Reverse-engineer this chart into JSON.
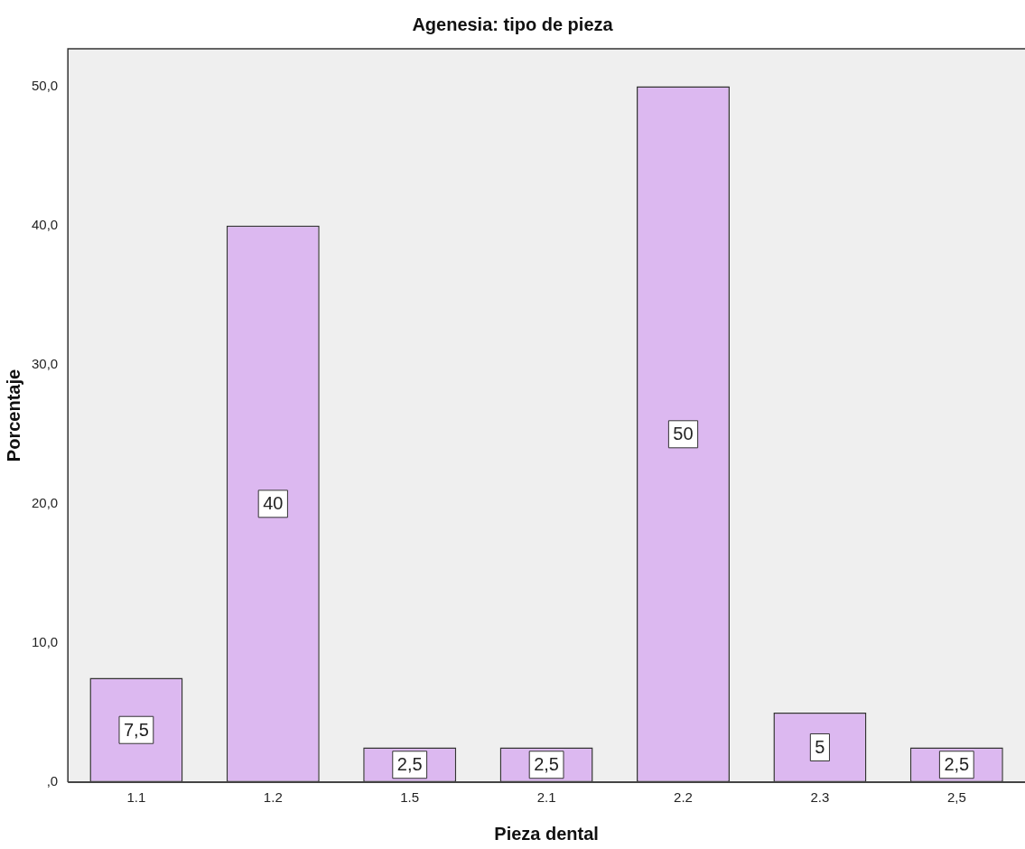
{
  "chart_data": {
    "type": "bar",
    "title": "Agenesia: tipo de pieza",
    "xlabel": "Pieza dental",
    "ylabel": "Porcentaje",
    "categories": [
      "1.1",
      "1.2",
      "1.5",
      "2.1",
      "2.2",
      "2.3",
      "2,5"
    ],
    "values": [
      7.5,
      40,
      2.5,
      2.5,
      50,
      5,
      2.5
    ],
    "value_labels": [
      "7,5",
      "40",
      "2,5",
      "2,5",
      "50",
      "5",
      "2,5"
    ],
    "color": "#dcb8f0",
    "ylim": [
      0,
      52.7
    ],
    "yticks": [
      {
        "value": 0,
        "label": ",0"
      },
      {
        "value": 10,
        "label": "10,0"
      },
      {
        "value": 20,
        "label": "20,0"
      },
      {
        "value": 30,
        "label": "30,0"
      },
      {
        "value": 40,
        "label": "40,0"
      },
      {
        "value": 50,
        "label": "50,0"
      }
    ],
    "grid": false,
    "legend": false
  }
}
